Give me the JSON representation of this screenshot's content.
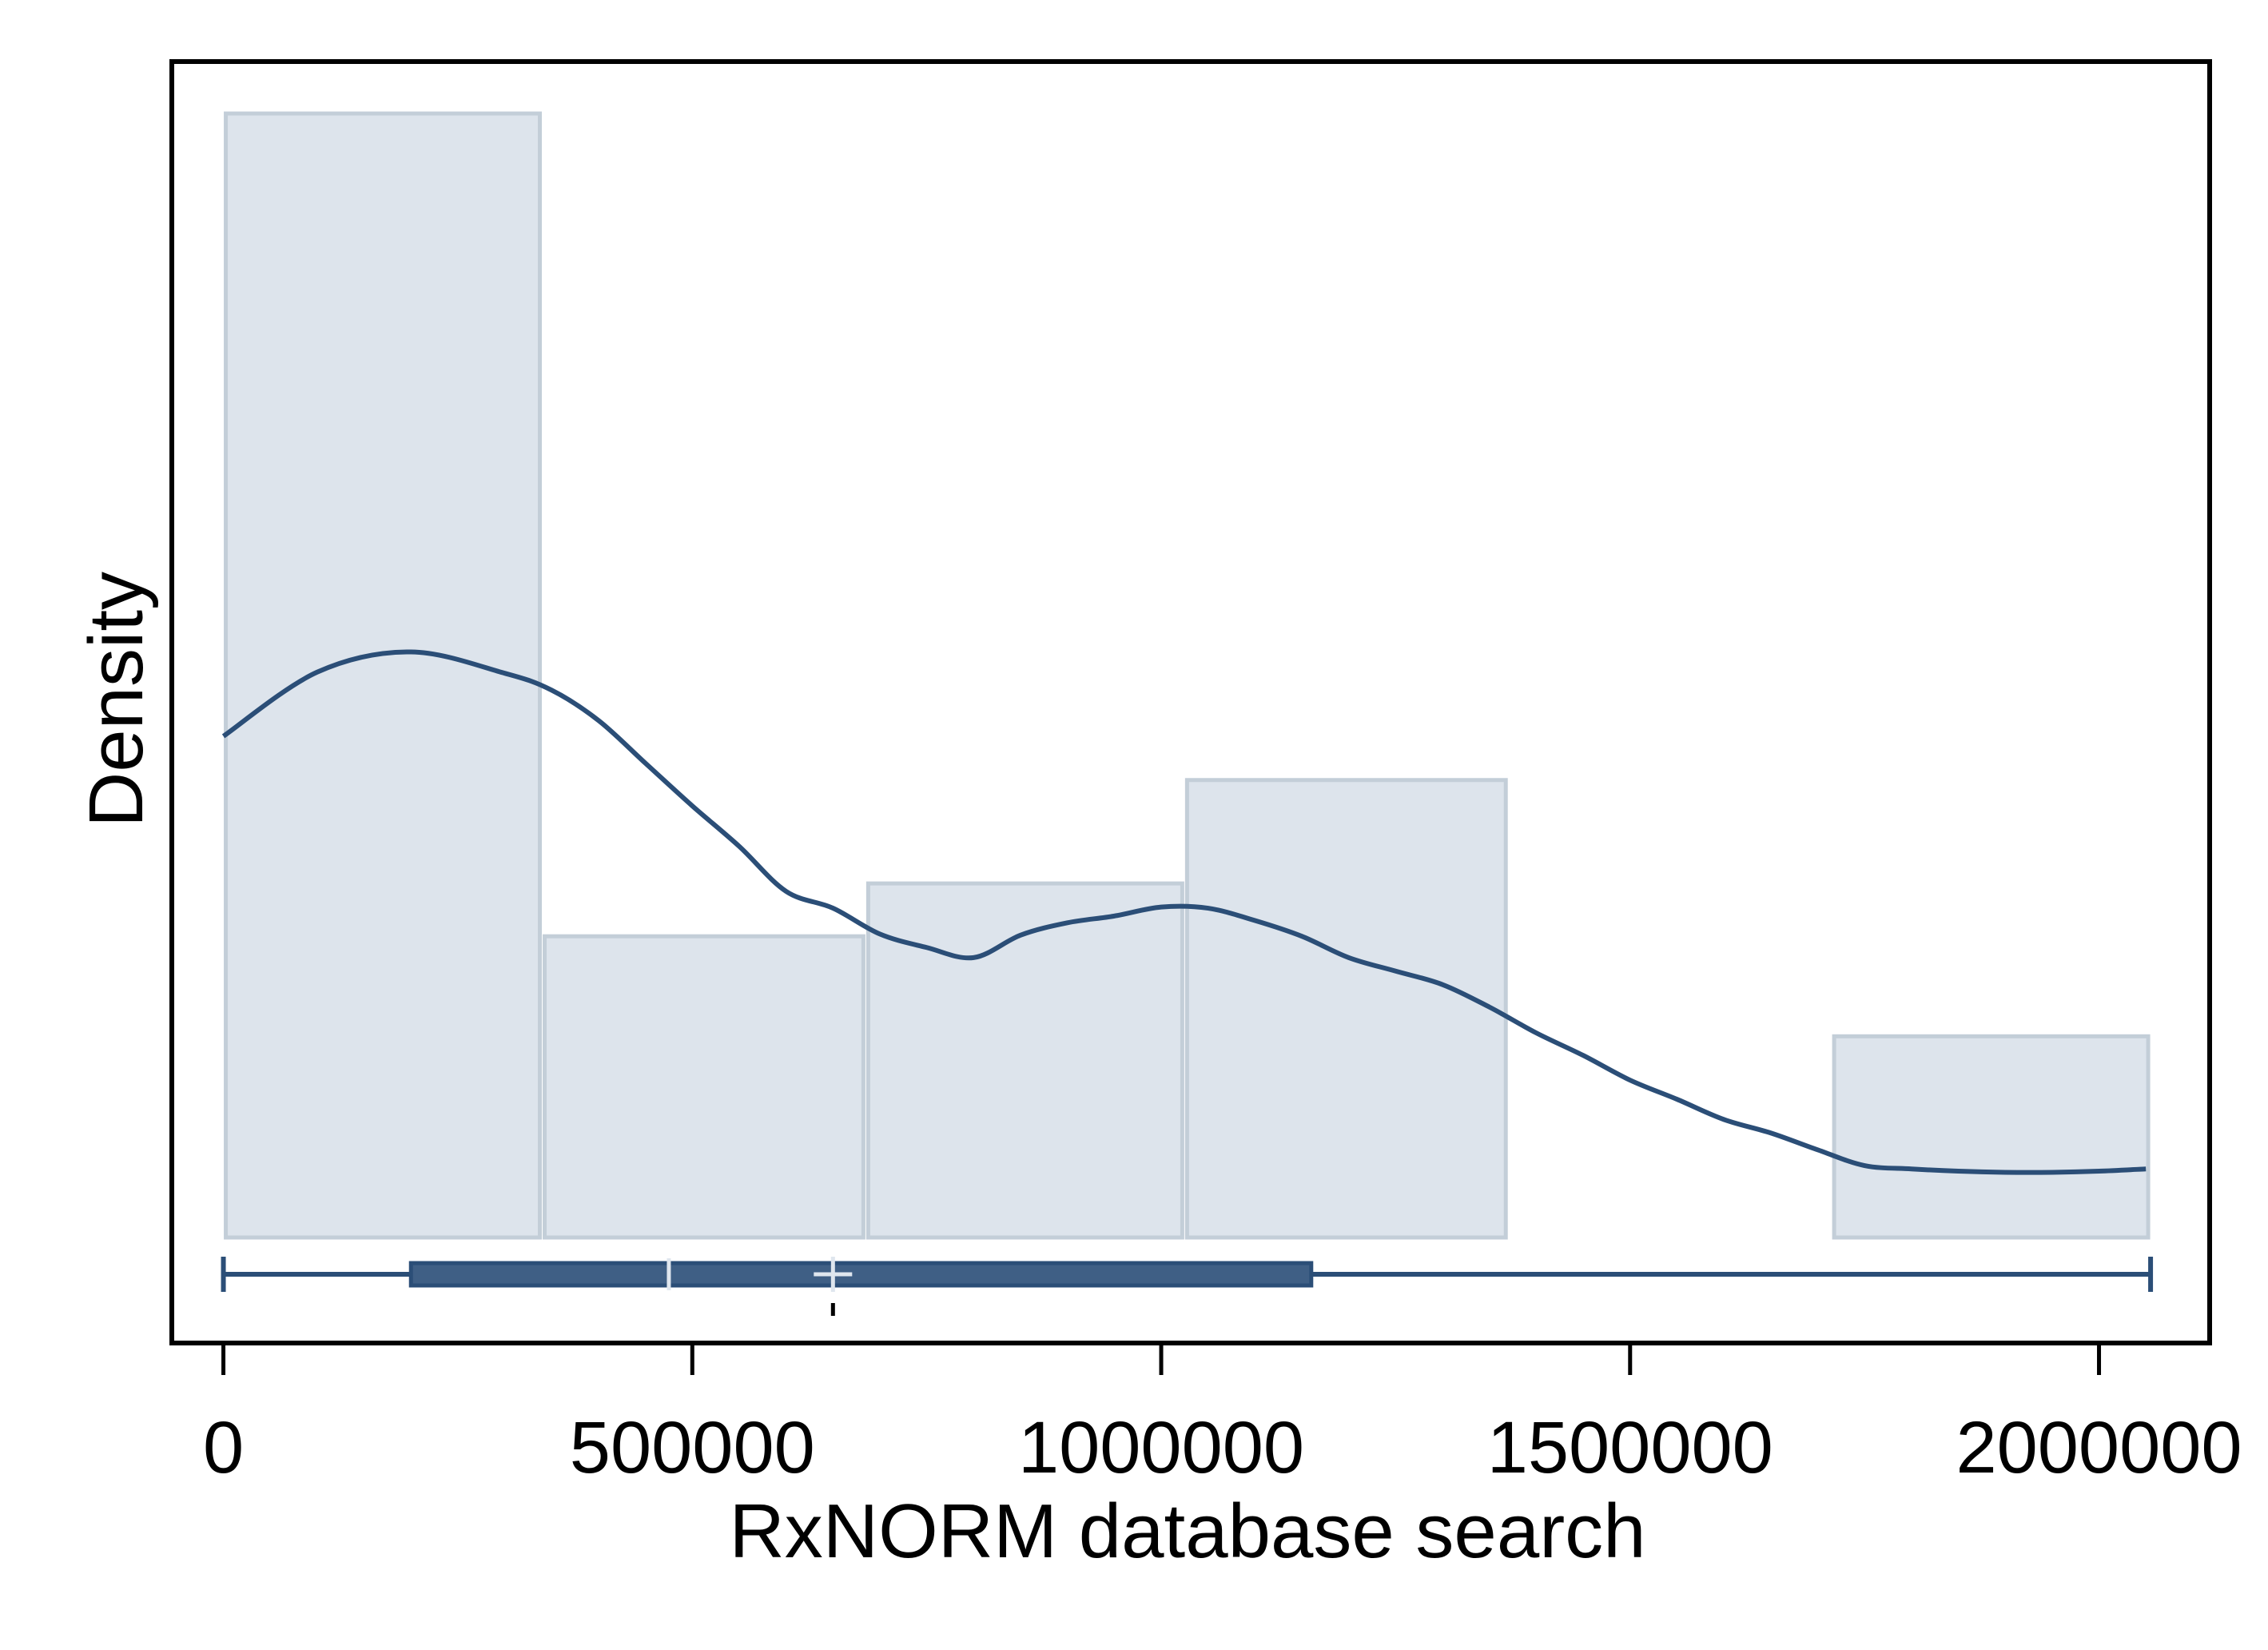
{
  "chart_data": {
    "type": "histogram",
    "xlabel": "RxNORM database search",
    "ylabel": "Density",
    "xlim": [
      -55000,
      2118000
    ],
    "x_ticks": [
      {
        "value": 0,
        "label": "0"
      },
      {
        "value": 500000,
        "label": "500000"
      },
      {
        "value": 1000000,
        "label": "1000000"
      },
      {
        "value": 1500000,
        "label": "1500000"
      },
      {
        "value": 2000000,
        "label": "2000000"
      }
    ],
    "y_ticks_shown": false,
    "bins": [
      {
        "x0": 0,
        "x1": 340000,
        "density": 1.0
      },
      {
        "x0": 340000,
        "x1": 685000,
        "density": 0.268
      },
      {
        "x0": 685000,
        "x1": 1025000,
        "density": 0.315
      },
      {
        "x0": 1025000,
        "x1": 1370000,
        "density": 0.407
      },
      {
        "x0": 1370000,
        "x1": 1715000,
        "density": 0.0
      },
      {
        "x0": 1715000,
        "x1": 2055000,
        "density": 0.179
      }
    ],
    "kde": {
      "x": [
        0,
        100000,
        200000,
        300000,
        350000,
        400000,
        450000,
        500000,
        550000,
        600000,
        650000,
        700000,
        750000,
        800000,
        850000,
        900000,
        950000,
        1000000,
        1050000,
        1100000,
        1150000,
        1200000,
        1250000,
        1300000,
        1350000,
        1400000,
        1450000,
        1500000,
        1550000,
        1600000,
        1650000,
        1700000,
        1750000,
        1800000,
        1850000,
        1900000,
        1950000,
        2000000,
        2050000
      ],
      "y": [
        0.446,
        0.503,
        0.521,
        0.502,
        0.487,
        0.46,
        0.422,
        0.384,
        0.348,
        0.308,
        0.293,
        0.27,
        0.258,
        0.249,
        0.269,
        0.28,
        0.286,
        0.294,
        0.293,
        0.282,
        0.268,
        0.249,
        0.237,
        0.225,
        0.205,
        0.182,
        0.162,
        0.14,
        0.123,
        0.105,
        0.093,
        0.078,
        0.064,
        0.061,
        0.059,
        0.058,
        0.058,
        0.059,
        0.061
      ]
    },
    "boxplot": {
      "min": 0,
      "q1": 200000,
      "median": 475000,
      "mean": 650000,
      "q3": 1160000,
      "max": 2055000
    },
    "colors": {
      "bar_fill": "#dde4ec",
      "bar_stroke": "#c3ced8",
      "curve": "#2b4e77",
      "box_fill": "#3f5f85",
      "axis": "#000000"
    }
  }
}
